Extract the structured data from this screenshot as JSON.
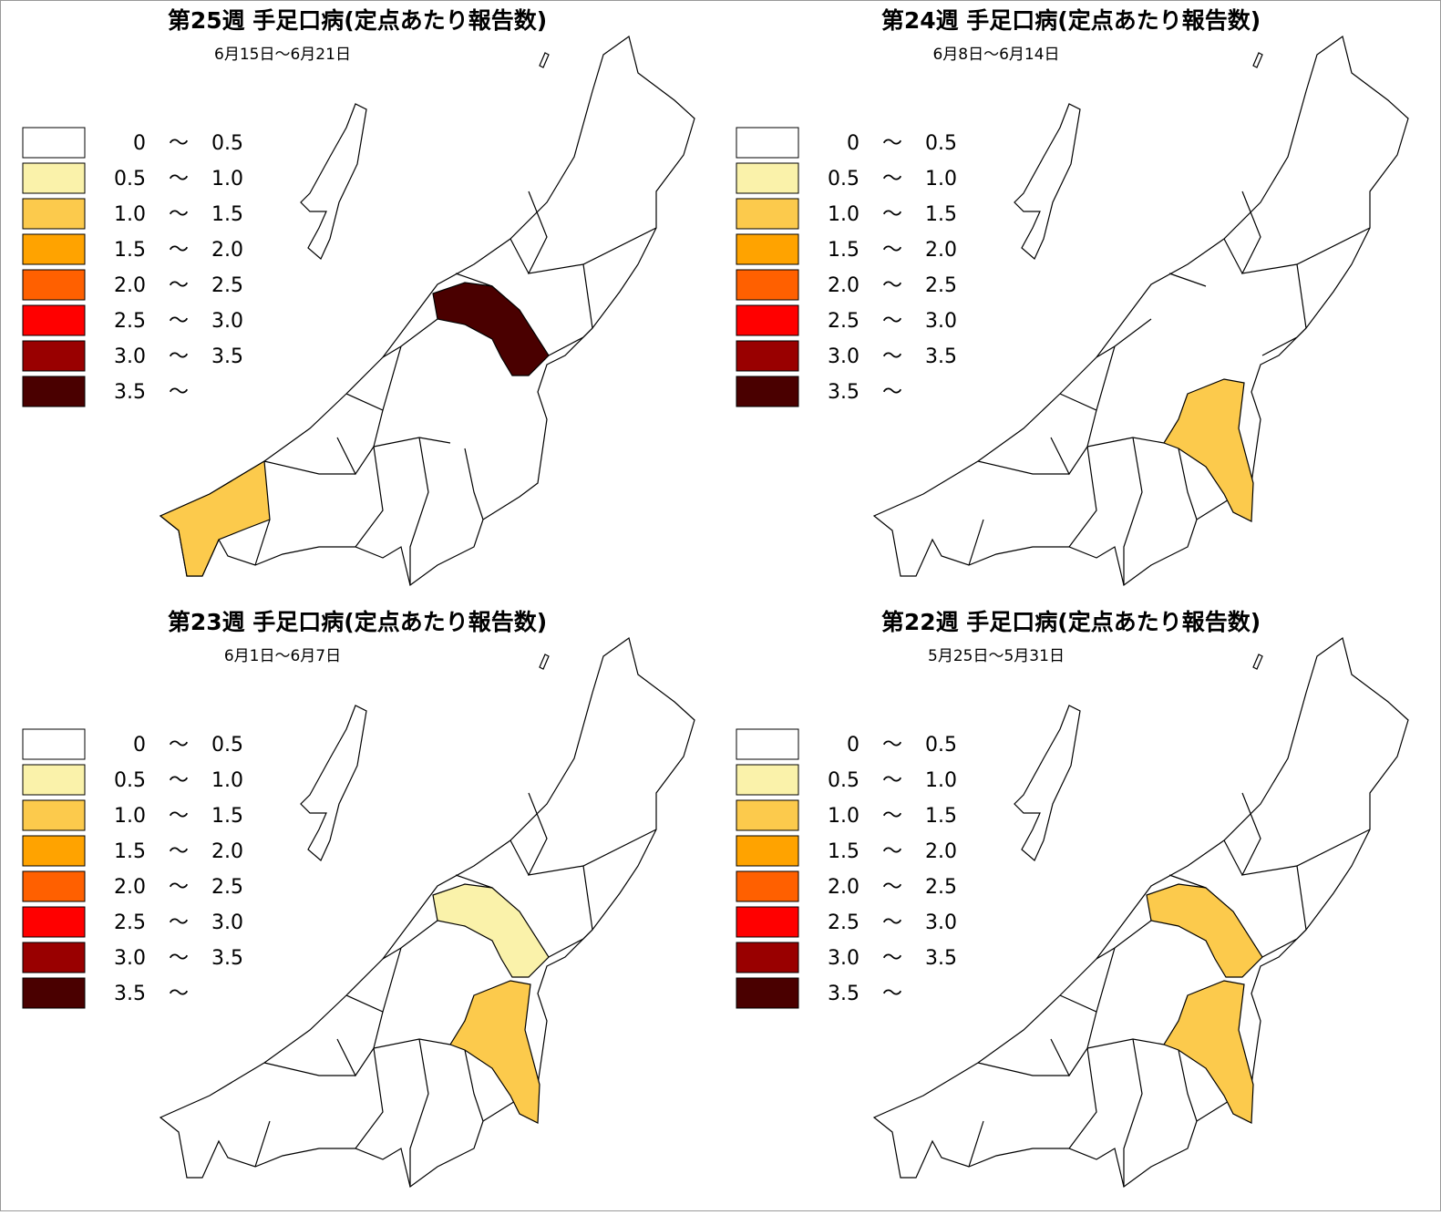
{
  "panels": [
    {
      "title": "第25週 手足口病(定点あたり報告数)",
      "period": "6月15日～6月21日"
    },
    {
      "title": "第24週 手足口病(定点あたり報告数)",
      "period": "6月8日～6月14日"
    },
    {
      "title": "第23週 手足口病(定点あたり報告数)",
      "period": "6月1日～6月7日"
    },
    {
      "title": "第22週 手足口病(定点あたり報告数)",
      "period": "5月25日～5月31日"
    }
  ],
  "legend": [
    {
      "color": "#ffffff",
      "text": [
        "0",
        "〜",
        "0.5"
      ]
    },
    {
      "color": "#faf2aa",
      "text": [
        "0.5",
        "〜",
        "1.0"
      ]
    },
    {
      "color": "#fcca4c",
      "text": [
        "1.0",
        "〜",
        "1.5"
      ]
    },
    {
      "color": "#ffa300",
      "text": [
        "1.5",
        "〜",
        "2.0"
      ]
    },
    {
      "color": "#ff6000",
      "text": [
        "2.0",
        "〜",
        "2.5"
      ]
    },
    {
      "color": "#ff0000",
      "text": [
        "2.5",
        "〜",
        "3.0"
      ]
    },
    {
      "color": "#990000",
      "text": [
        "3.0",
        "〜",
        "3.5"
      ]
    },
    {
      "color": "#4a0000",
      "text": [
        "3.5",
        "〜"
      ]
    }
  ]
}
